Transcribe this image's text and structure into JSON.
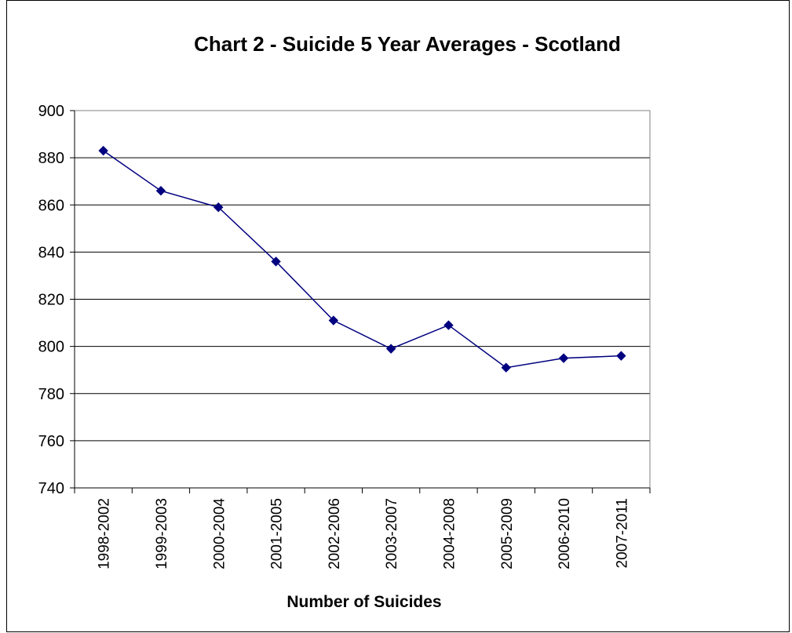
{
  "chart_data": {
    "type": "line",
    "title": "Chart 2 - Suicide 5 Year Averages - Scotland",
    "xlabel": "Number of Suicides",
    "ylabel": "",
    "categories": [
      "1998-2002",
      "1999-2003",
      "2000-2004",
      "2001-2005",
      "2002-2006",
      "2003-2007",
      "2004-2008",
      "2005-2009",
      "2006-2010",
      "2007-2011"
    ],
    "series": [
      {
        "values": [
          883,
          866,
          859,
          836,
          811,
          799,
          809,
          791,
          795,
          796
        ]
      }
    ],
    "ylim": [
      740,
      900
    ],
    "yticks": [
      740,
      760,
      780,
      800,
      820,
      840,
      860,
      880,
      900
    ],
    "grid": "horizontal",
    "legend": "none",
    "colors": {
      "line": "#000080",
      "marker": "#000080",
      "grid": "#000000",
      "plot_bg": "#ffffff"
    }
  }
}
